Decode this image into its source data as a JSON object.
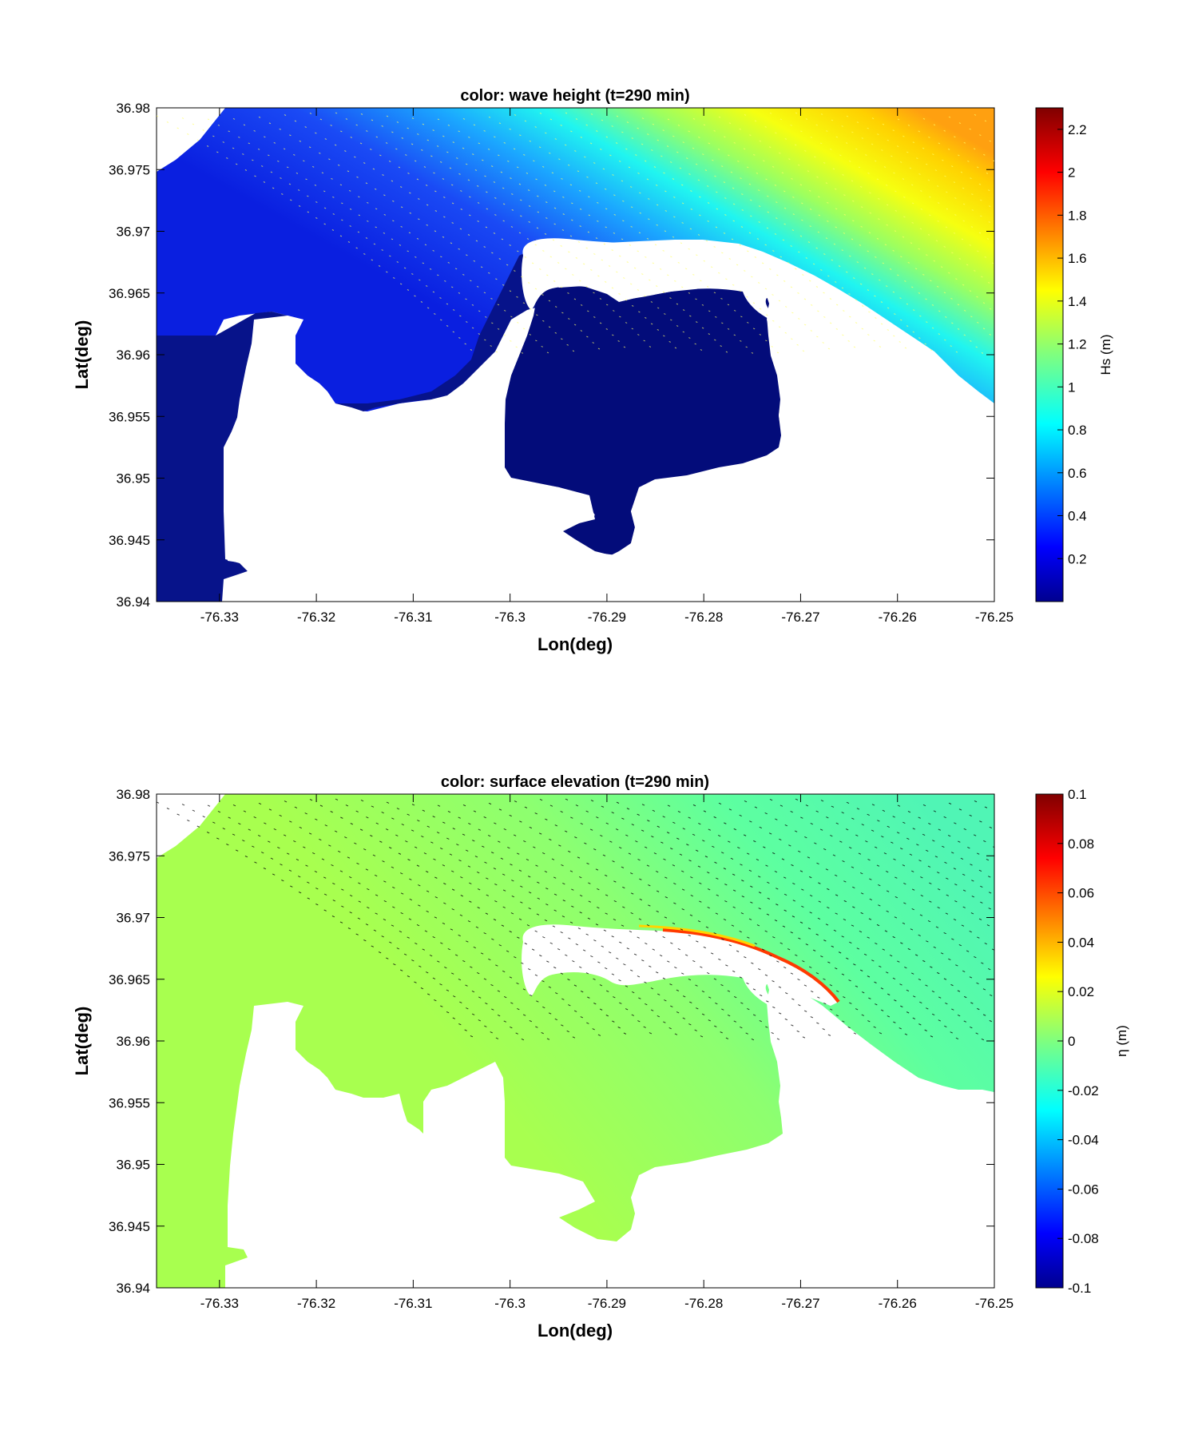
{
  "chart_data": [
    {
      "type": "heatmap",
      "title": "color: wave height   (t=290 min)",
      "xlabel": "Lon(deg)",
      "ylabel": "Lat(deg)",
      "xlim": [
        -76.3365,
        -76.25
      ],
      "ylim": [
        36.94,
        36.98
      ],
      "xticks": [
        -76.33,
        -76.32,
        -76.31,
        -76.3,
        -76.29,
        -76.28,
        -76.27,
        -76.26,
        -76.25
      ],
      "yticks": [
        36.94,
        36.945,
        36.95,
        36.955,
        36.96,
        36.965,
        36.97,
        36.975,
        36.98
      ],
      "xtick_labels": [
        "-76.33",
        "-76.32",
        "-76.31",
        "-76.3",
        "-76.29",
        "-76.28",
        "-76.27",
        "-76.26",
        "-76.25"
      ],
      "ytick_labels": [
        "36.94",
        "36.945",
        "36.95",
        "36.955",
        "36.96",
        "36.965",
        "36.97",
        "36.975",
        "36.98"
      ],
      "colorbar": {
        "label": "Hs (m)",
        "range": [
          0,
          2.3
        ],
        "ticks": [
          0.2,
          0.4,
          0.6,
          0.8,
          1,
          1.2,
          1.4,
          1.6,
          1.8,
          2,
          2.2
        ],
        "tick_labels": [
          "0.2",
          "0.4",
          "0.6",
          "0.8",
          "1",
          "1.2",
          "1.4",
          "1.6",
          "1.8",
          "2",
          "2.2"
        ],
        "colormap": "jet"
      },
      "field_samples": [
        {
          "lon": -76.33,
          "lat": 36.95,
          "value": 0.05
        },
        {
          "lon": -76.29,
          "lat": 36.955,
          "value": 0.05
        },
        {
          "lon": -76.31,
          "lat": 36.965,
          "value": 0.25
        },
        {
          "lon": -76.3,
          "lat": 36.975,
          "value": 0.35
        },
        {
          "lon": -76.285,
          "lat": 36.975,
          "value": 0.8
        },
        {
          "lon": -76.275,
          "lat": 36.975,
          "value": 1.1
        },
        {
          "lon": -76.265,
          "lat": 36.968,
          "value": 1.4
        },
        {
          "lon": -76.255,
          "lat": 36.975,
          "value": 1.6
        }
      ]
    },
    {
      "type": "heatmap",
      "title": "color: surface elevation  (t=290 min)",
      "xlabel": "Lon(deg)",
      "ylabel": "Lat(deg)",
      "xlim": [
        -76.3365,
        -76.25
      ],
      "ylim": [
        36.94,
        36.98
      ],
      "xticks": [
        -76.33,
        -76.32,
        -76.31,
        -76.3,
        -76.29,
        -76.28,
        -76.27,
        -76.26,
        -76.25
      ],
      "yticks": [
        36.94,
        36.945,
        36.95,
        36.955,
        36.96,
        36.965,
        36.97,
        36.975,
        36.98
      ],
      "xtick_labels": [
        "-76.33",
        "-76.32",
        "-76.31",
        "-76.3",
        "-76.29",
        "-76.28",
        "-76.27",
        "-76.26",
        "-76.25"
      ],
      "ytick_labels": [
        "36.94",
        "36.945",
        "36.95",
        "36.955",
        "36.96",
        "36.965",
        "36.97",
        "36.975",
        "36.98"
      ],
      "colorbar": {
        "label": "η (m)",
        "range": [
          -0.1,
          0.1
        ],
        "ticks": [
          -0.1,
          -0.08,
          -0.06,
          -0.04,
          -0.02,
          0,
          0.02,
          0.04,
          0.06,
          0.08,
          0.1
        ],
        "tick_labels": [
          "-0.1",
          "-0.08",
          "-0.06",
          "-0.04",
          "-0.02",
          "0",
          "0.02",
          "0.04",
          "0.06",
          "0.08",
          "0.1"
        ],
        "colormap": "jet"
      },
      "field_samples": [
        {
          "lon": -76.33,
          "lat": 36.95,
          "value": 0.01
        },
        {
          "lon": -76.29,
          "lat": 36.955,
          "value": 0.01
        },
        {
          "lon": -76.31,
          "lat": 36.97,
          "value": 0.005
        },
        {
          "lon": -76.28,
          "lat": 36.975,
          "value": -0.008
        },
        {
          "lon": -76.26,
          "lat": 36.965,
          "value": -0.018
        },
        {
          "lon": -76.28,
          "lat": 36.969,
          "value": 0.05
        }
      ]
    }
  ]
}
